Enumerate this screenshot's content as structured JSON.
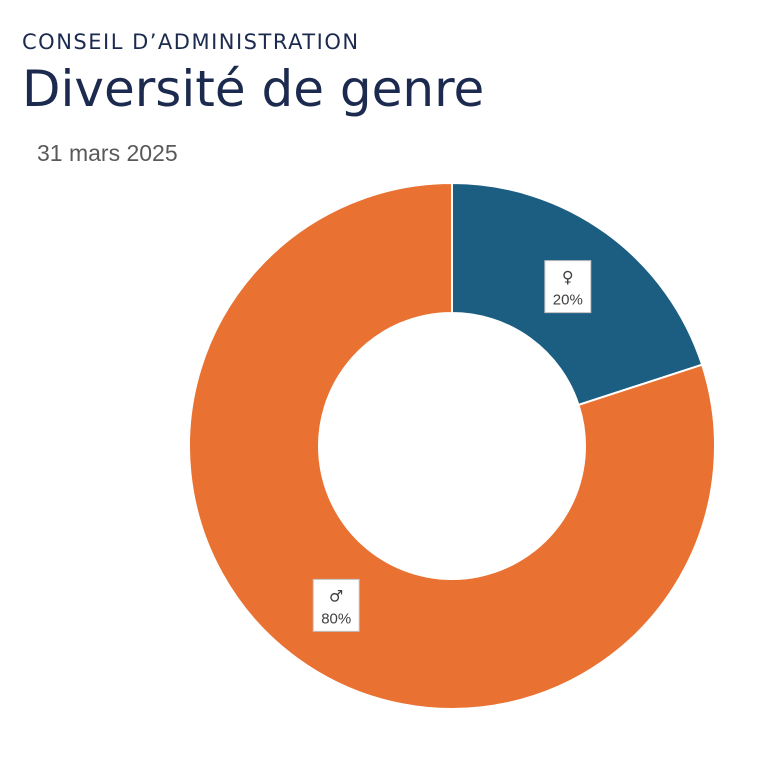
{
  "header": {
    "kicker": "CONSEIL D’ADMINISTRATION",
    "title": "Diversité de genre",
    "date": "31 mars 2025"
  },
  "chart_data": {
    "type": "pie",
    "variant": "donut",
    "title": "Diversité de genre",
    "subtitle": "31 mars 2025",
    "categories": [
      "♀",
      "♂"
    ],
    "values": [
      20,
      80
    ],
    "value_labels": [
      "20%",
      "80%"
    ],
    "colors": [
      "#1b5e82",
      "#e97132"
    ],
    "start_angle_deg": 0,
    "direction": "clockwise"
  }
}
